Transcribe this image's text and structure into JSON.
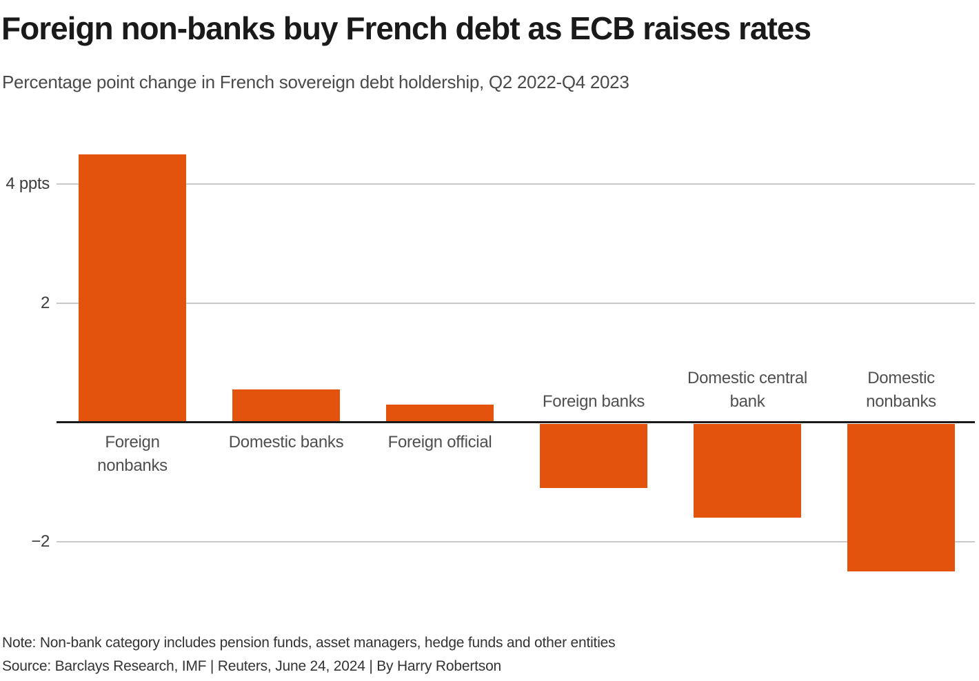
{
  "header": {
    "title": "Foreign non-banks buy French debt as ECB raises rates",
    "subtitle": "Percentage point change in French sovereign debt holdership, Q2 2022-Q4 2023"
  },
  "chart_data": {
    "type": "bar",
    "title": "Foreign non-banks buy French debt as ECB raises rates",
    "subtitle": "Percentage point change in French sovereign debt holdership, Q2 2022-Q4 2023",
    "unit": "percentage points",
    "categories": [
      "Foreign nonbanks",
      "Domestic banks",
      "Foreign official",
      "Foreign banks",
      "Domestic central bank",
      "Domestic nonbanks"
    ],
    "category_label_lines": [
      [
        "Foreign",
        "nonbanks"
      ],
      [
        "Domestic banks"
      ],
      [
        "Foreign official"
      ],
      [
        "Foreign banks"
      ],
      [
        "Domestic central",
        "bank"
      ],
      [
        "Domestic",
        "nonbanks"
      ]
    ],
    "values": [
      4.5,
      0.55,
      0.3,
      -1.1,
      -1.6,
      -2.5
    ],
    "yticks": [
      {
        "value": 4,
        "label": "4 ppts"
      },
      {
        "value": 2,
        "label": "2"
      },
      {
        "value": -2,
        "label": "−2"
      }
    ],
    "ylim": [
      -2.8,
      4.7
    ],
    "grid": true,
    "legend": false,
    "bar_color": "#e4530e",
    "gridline_color": "#c9c9c9",
    "baseline_color": "#1a1a1a"
  },
  "footer": {
    "note": "Note: Non-bank category includes pension funds, asset managers, hedge funds and other entities",
    "source": "Source: Barclays Research, IMF | Reuters, June 24, 2024 | By Harry Robertson"
  }
}
